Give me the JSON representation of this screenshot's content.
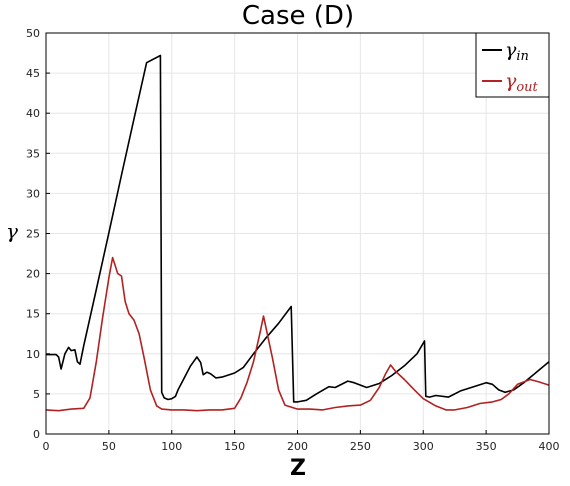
{
  "chart_data": {
    "type": "line",
    "title": "Case (D)",
    "xlabel": "Z",
    "ylabel": "γ",
    "xlim": [
      0,
      400
    ],
    "ylim": [
      0,
      50
    ],
    "x_ticks": [
      "0",
      "50",
      "100",
      "150",
      "200",
      "250",
      "300",
      "350",
      "400"
    ],
    "y_ticks": [
      "0",
      "5",
      "10",
      "15",
      "20",
      "25",
      "30",
      "35",
      "40",
      "45",
      "50"
    ],
    "grid": true,
    "legend_position": "top-right",
    "series": [
      {
        "name": "γin",
        "name_main": "γ",
        "name_sub": "in",
        "color": "#000000",
        "points": [
          [
            0,
            9.9
          ],
          [
            8,
            9.9
          ],
          [
            10,
            9.6
          ],
          [
            12,
            8.1
          ],
          [
            15,
            10.0
          ],
          [
            18,
            10.8
          ],
          [
            20,
            10.4
          ],
          [
            23,
            10.5
          ],
          [
            25,
            9.0
          ],
          [
            27,
            8.7
          ],
          [
            30,
            11.0
          ],
          [
            35,
            14.5
          ],
          [
            40,
            18.0
          ],
          [
            50,
            25.1
          ],
          [
            60,
            32.3
          ],
          [
            70,
            39.3
          ],
          [
            80,
            46.3
          ],
          [
            91,
            47.2
          ],
          [
            92,
            5.2
          ],
          [
            94,
            4.5
          ],
          [
            97,
            4.3
          ],
          [
            100,
            4.4
          ],
          [
            103,
            4.7
          ],
          [
            105,
            5.5
          ],
          [
            110,
            7.0
          ],
          [
            115,
            8.5
          ],
          [
            120,
            9.6
          ],
          [
            123,
            8.9
          ],
          [
            125,
            7.4
          ],
          [
            128,
            7.7
          ],
          [
            131,
            7.5
          ],
          [
            135,
            7.0
          ],
          [
            140,
            7.1
          ],
          [
            150,
            7.6
          ],
          [
            157,
            8.3
          ],
          [
            165,
            10.0
          ],
          [
            175,
            12.0
          ],
          [
            185,
            13.8
          ],
          [
            195,
            15.9
          ],
          [
            197,
            4.0
          ],
          [
            200,
            4.0
          ],
          [
            207,
            4.2
          ],
          [
            215,
            5.0
          ],
          [
            225,
            5.9
          ],
          [
            230,
            5.8
          ],
          [
            240,
            6.6
          ],
          [
            245,
            6.4
          ],
          [
            250,
            6.1
          ],
          [
            255,
            5.8
          ],
          [
            265,
            6.3
          ],
          [
            275,
            7.3
          ],
          [
            285,
            8.5
          ],
          [
            295,
            10.0
          ],
          [
            301,
            11.6
          ],
          [
            302,
            4.7
          ],
          [
            305,
            4.6
          ],
          [
            310,
            4.8
          ],
          [
            320,
            4.6
          ],
          [
            330,
            5.4
          ],
          [
            340,
            5.9
          ],
          [
            350,
            6.4
          ],
          [
            355,
            6.2
          ],
          [
            360,
            5.5
          ],
          [
            365,
            5.2
          ],
          [
            372,
            5.5
          ],
          [
            380,
            6.4
          ],
          [
            390,
            7.7
          ],
          [
            400,
            9.0
          ]
        ]
      },
      {
        "name": "γout",
        "name_main": "γ",
        "name_sub": "out",
        "color": "#b22222",
        "points": [
          [
            0,
            3.0
          ],
          [
            10,
            2.9
          ],
          [
            20,
            3.1
          ],
          [
            30,
            3.2
          ],
          [
            35,
            4.5
          ],
          [
            40,
            9.0
          ],
          [
            45,
            14.5
          ],
          [
            50,
            19.5
          ],
          [
            53,
            22.0
          ],
          [
            55,
            21.0
          ],
          [
            57,
            20.0
          ],
          [
            60,
            19.7
          ],
          [
            63,
            16.5
          ],
          [
            66,
            15.0
          ],
          [
            70,
            14.2
          ],
          [
            74,
            12.5
          ],
          [
            78,
            9.5
          ],
          [
            83,
            5.5
          ],
          [
            88,
            3.5
          ],
          [
            92,
            3.1
          ],
          [
            100,
            3.0
          ],
          [
            110,
            3.0
          ],
          [
            120,
            2.9
          ],
          [
            130,
            3.0
          ],
          [
            140,
            3.0
          ],
          [
            150,
            3.2
          ],
          [
            155,
            4.5
          ],
          [
            160,
            6.5
          ],
          [
            165,
            9.0
          ],
          [
            170,
            12.5
          ],
          [
            173,
            14.7
          ],
          [
            176,
            12.5
          ],
          [
            180,
            9.5
          ],
          [
            185,
            5.5
          ],
          [
            190,
            3.6
          ],
          [
            200,
            3.1
          ],
          [
            210,
            3.1
          ],
          [
            220,
            3.0
          ],
          [
            230,
            3.3
          ],
          [
            240,
            3.5
          ],
          [
            250,
            3.6
          ],
          [
            258,
            4.2
          ],
          [
            265,
            5.8
          ],
          [
            270,
            7.5
          ],
          [
            274,
            8.6
          ],
          [
            278,
            7.8
          ],
          [
            285,
            6.8
          ],
          [
            293,
            5.5
          ],
          [
            300,
            4.4
          ],
          [
            310,
            3.5
          ],
          [
            318,
            3.0
          ],
          [
            325,
            3.0
          ],
          [
            335,
            3.3
          ],
          [
            345,
            3.8
          ],
          [
            355,
            4.0
          ],
          [
            362,
            4.3
          ],
          [
            368,
            5.0
          ],
          [
            375,
            6.2
          ],
          [
            385,
            6.8
          ],
          [
            392,
            6.5
          ],
          [
            400,
            6.1
          ]
        ]
      }
    ]
  }
}
